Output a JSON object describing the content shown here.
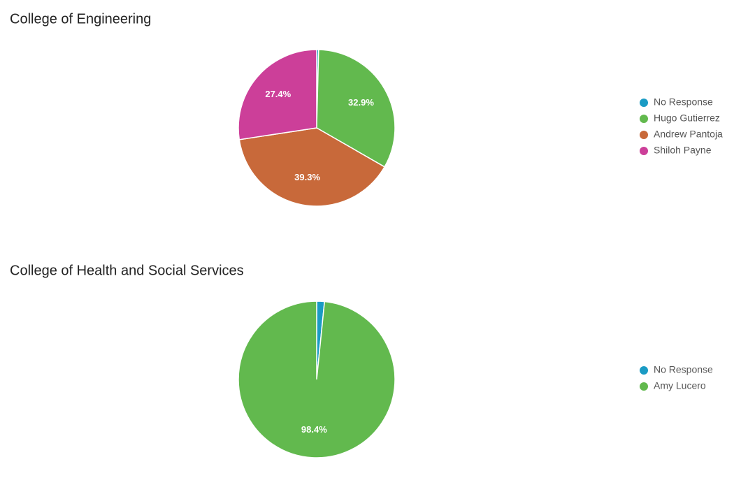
{
  "chart_data": [
    {
      "type": "pie",
      "title": "College of Engineering",
      "categories": [
        "No Response",
        "Hugo Gutierrez",
        "Andrew Pantoja",
        "Shiloh Payne"
      ],
      "values": [
        0.4,
        32.9,
        39.3,
        27.4
      ],
      "value_labels": [
        null,
        "32.9%",
        "39.3%",
        "27.4%"
      ],
      "colors": [
        "#1a9bc4",
        "#62b94e",
        "#c8693a",
        "#cc3f99"
      ],
      "legend": "right"
    },
    {
      "type": "pie",
      "title": "College of Health and Social Services",
      "categories": [
        "No Response",
        "Amy Lucero"
      ],
      "values": [
        1.6,
        98.4
      ],
      "value_labels": [
        null,
        "98.4%"
      ],
      "colors": [
        "#1a9bc4",
        "#62b94e"
      ],
      "legend": "right"
    }
  ]
}
